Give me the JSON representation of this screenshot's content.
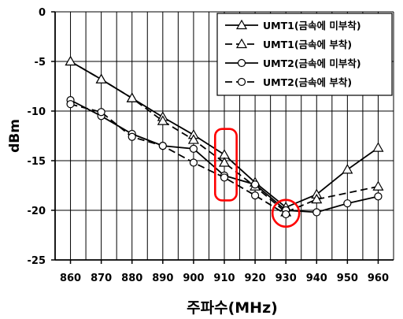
{
  "chart_data": {
    "type": "line",
    "xlabel": "주파수(MHz)",
    "ylabel": "dBm",
    "x": [
      860,
      870,
      880,
      890,
      900,
      910,
      920,
      930,
      940,
      950,
      960
    ],
    "xlim": [
      855,
      965
    ],
    "ylim": [
      -25,
      0
    ],
    "yticks": [
      0,
      -5,
      -10,
      -15,
      -20,
      -25
    ],
    "grid": true,
    "legend": "top-right",
    "series": [
      {
        "name": "UMT1(금속에 미부착)",
        "marker": "triangle",
        "dash": "solid",
        "values": [
          -5.0,
          -6.8,
          -8.7,
          -10.6,
          -12.4,
          -14.4,
          -17.2,
          -19.7,
          -18.4,
          -15.9,
          -13.7
        ]
      },
      {
        "name": "UMT1(금속에 부착)",
        "marker": "triangle",
        "dash": "dashed",
        "values": [
          -5.0,
          -6.8,
          -8.7,
          -11.0,
          -12.9,
          -15.2,
          -17.6,
          -20.2,
          -18.9,
          null,
          -17.6
        ]
      },
      {
        "name": "UMT2(금속에 미부착)",
        "marker": "circle",
        "dash": "solid",
        "values": [
          -8.9,
          -10.5,
          -12.3,
          -13.5,
          -13.8,
          -16.5,
          -17.4,
          -20.0,
          -20.2,
          -19.3,
          -18.6
        ]
      },
      {
        "name": "UMT2(금속에 부착)",
        "marker": "circle",
        "dash": "dashed",
        "values": [
          -9.3,
          -10.1,
          -12.6,
          -13.5,
          -15.2,
          -16.7,
          -18.5,
          -20.4,
          null,
          null,
          null
        ]
      }
    ],
    "annotations": [
      {
        "shape": "rounded-rect",
        "color": "#ff0000",
        "x_range": [
          907,
          914
        ],
        "y_range": [
          -11.8,
          -19.0
        ]
      },
      {
        "shape": "circle",
        "color": "#ff0000",
        "x": 930,
        "y": -20.3
      }
    ]
  },
  "colors": {
    "line": "#000000",
    "annotation": "#ff0000",
    "grid": "#000000"
  }
}
